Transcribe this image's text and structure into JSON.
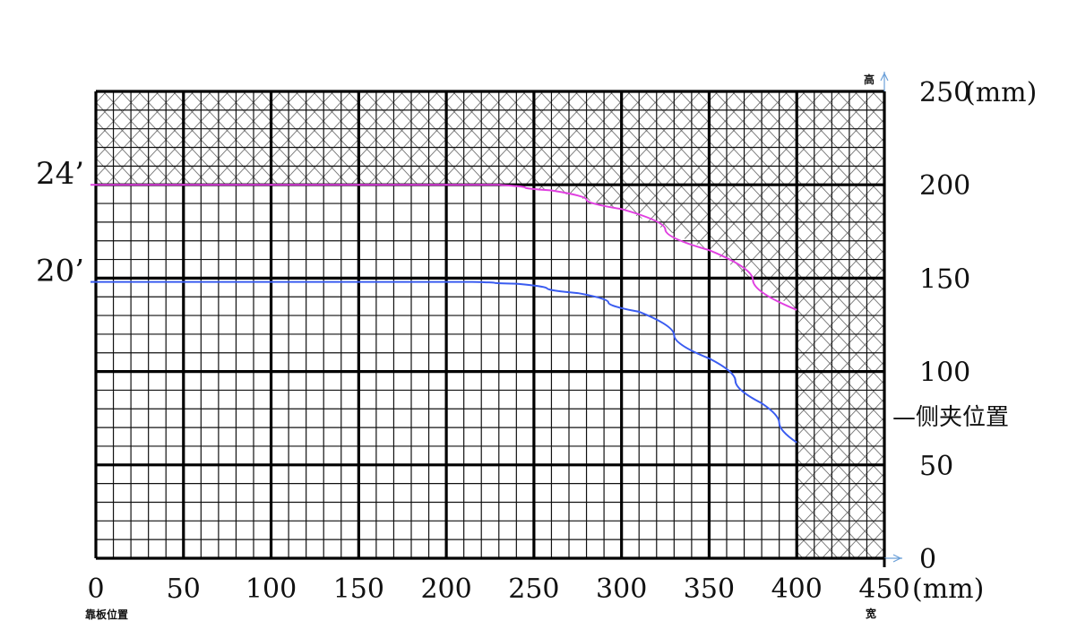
{
  "chart_data": {
    "type": "line",
    "x_ticks": [
      "0",
      "50",
      "100",
      "150",
      "200",
      "250",
      "300",
      "350",
      "400",
      "450"
    ],
    "y_ticks": [
      "0",
      "50",
      "100",
      "150",
      "200",
      "250"
    ],
    "x_unit": "(mm)",
    "y_unit": "(mm)",
    "x_origin_label": "靠板位置",
    "x_axis_end_label": "宽",
    "y_axis_end_label": "高",
    "clamp_label": "—侧夹位置",
    "xlim": [
      0,
      450
    ],
    "ylim": [
      0,
      250
    ],
    "grid": true,
    "series": [
      {
        "name": "24’",
        "color": "#e040e0",
        "x": [
          0,
          230,
          260,
          300,
          350,
          400
        ],
        "y": [
          200,
          200,
          197,
          187,
          165,
          133
        ]
      },
      {
        "name": "20’",
        "color": "#3a5cf0",
        "x": [
          0,
          215,
          240,
          275,
          310,
          350,
          380,
          400
        ],
        "y": [
          148,
          148,
          147,
          142,
          132,
          107,
          83,
          62
        ]
      }
    ]
  }
}
